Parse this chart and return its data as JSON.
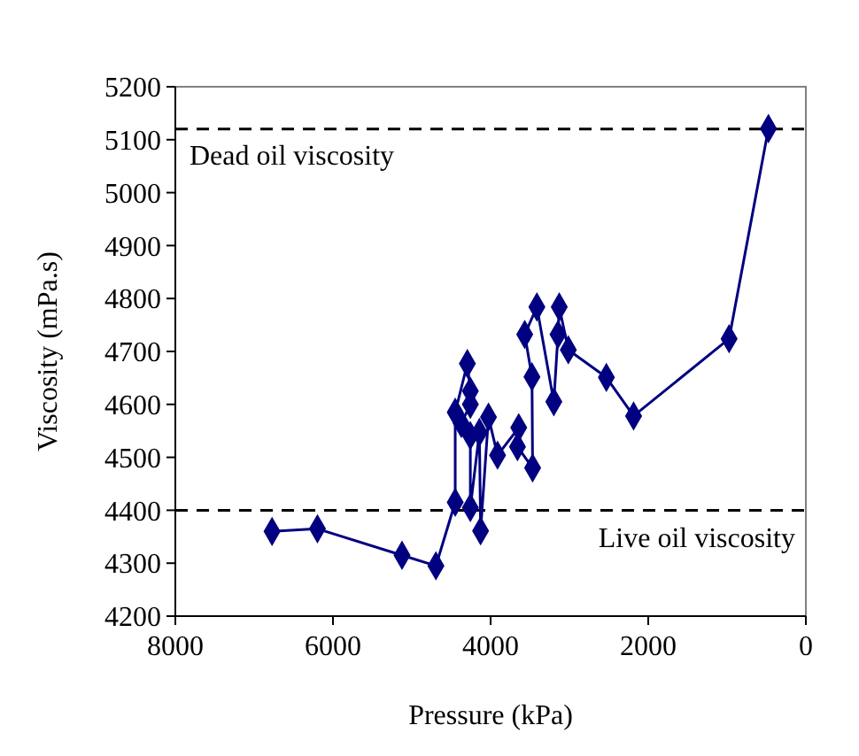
{
  "chart_data": {
    "type": "line",
    "xlabel": "Pressure (kPa)",
    "ylabel": "Viscosity (mPa.s)",
    "xlim": [
      8000,
      0
    ],
    "ylim": [
      4200,
      5200
    ],
    "xticks": [
      8000,
      6000,
      4000,
      2000,
      0
    ],
    "yticks": [
      4200,
      4300,
      4400,
      4500,
      4600,
      4700,
      4800,
      4900,
      5000,
      5100,
      5200
    ],
    "grid": false,
    "marker": "diamond",
    "line_style": "solid",
    "ref_lines": [
      {
        "axis": "y",
        "value": 5120,
        "label": "Dead oil viscosity",
        "color": "#000000",
        "line_style": "dashed"
      },
      {
        "axis": "y",
        "value": 4400,
        "label": "Live oil viscosity",
        "color": "#000000",
        "line_style": "dashed"
      }
    ],
    "series": [
      {
        "color": "#000080",
        "x": [
          6773,
          6197,
          5124,
          4694,
          4449,
          4449,
          4295,
          4257,
          4257,
          4372,
          4257,
          4257,
          4142,
          4127,
          4027,
          3912,
          3643,
          3659,
          3467,
          3475,
          3567,
          3413,
          3198,
          3145,
          3129,
          3014,
          2531,
          2186,
          974,
          475
        ],
        "values": [
          4360,
          4365,
          4315,
          4295,
          4415,
          4585,
          4677,
          4625,
          4600,
          4564,
          4541,
          4405,
          4547,
          4361,
          4576,
          4504,
          4556,
          4520,
          4480,
          4652,
          4732,
          4784,
          4605,
          4732,
          4784,
          4703,
          4651,
          4578,
          4724,
          5121
        ]
      }
    ]
  }
}
